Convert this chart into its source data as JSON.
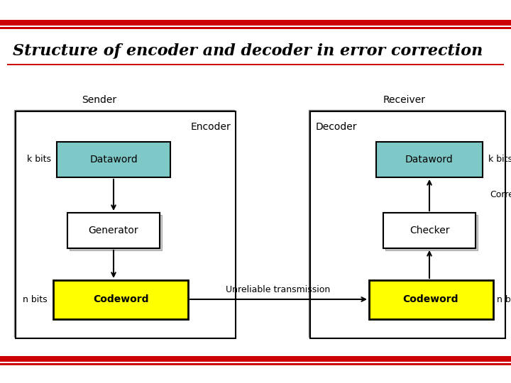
{
  "title": "Structure of encoder and decoder in error correction",
  "title_fontsize": 16,
  "title_style": "italic",
  "title_font": "serif",
  "bg_color": "#ffffff",
  "bar_color": "#cc0000",
  "dataword_fill": "#7ec8c8",
  "codeword_fill": "#ffff00",
  "generator_fill": "#ffffff",
  "checker_fill": "#ffffff",
  "sender_label": "Sender",
  "receiver_label": "Receiver",
  "encoder_label": "Encoder",
  "decoder_label": "Decoder",
  "unreliable_label": "Unreliable transmission",
  "correct_label": "Correct",
  "k_bits": "k bits",
  "n_bits": "n bits",
  "dataword_text": "Dataword",
  "generator_text": "Generator",
  "codeword_text": "Codeword",
  "checker_text": "Checker"
}
